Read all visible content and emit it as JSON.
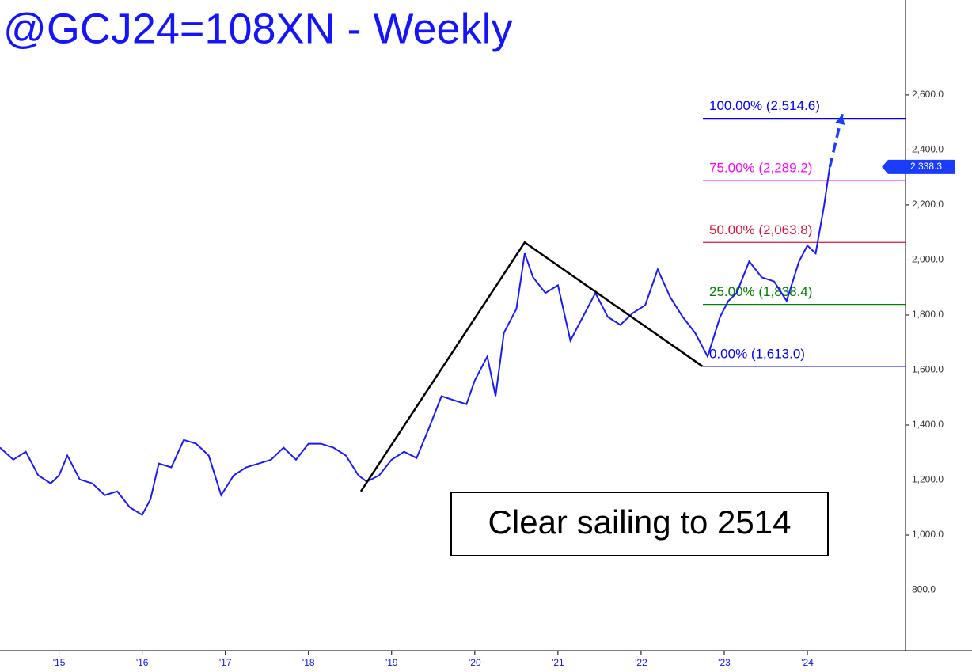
{
  "chart_data": {
    "type": "line",
    "title": "@GCJ24=108XN - Weekly",
    "color": "#1a1aff",
    "x": [
      2014.29,
      2014.45,
      2014.6,
      2014.75,
      2014.9,
      2015.0,
      2015.1,
      2015.25,
      2015.4,
      2015.55,
      2015.7,
      2015.85,
      2016.0,
      2016.1,
      2016.2,
      2016.35,
      2016.5,
      2016.65,
      2016.8,
      2016.95,
      2017.1,
      2017.25,
      2017.4,
      2017.55,
      2017.7,
      2017.85,
      2018.0,
      2018.15,
      2018.3,
      2018.45,
      2018.6,
      2018.7,
      2018.85,
      2019.0,
      2019.15,
      2019.3,
      2019.45,
      2019.6,
      2019.75,
      2019.9,
      2020.0,
      2020.15,
      2020.25,
      2020.35,
      2020.5,
      2020.6,
      2020.7,
      2020.85,
      2021.0,
      2021.15,
      2021.3,
      2021.45,
      2021.6,
      2021.75,
      2021.9,
      2022.05,
      2022.2,
      2022.35,
      2022.5,
      2022.65,
      2022.8,
      2022.95,
      2023.05,
      2023.15,
      2023.3,
      2023.45,
      2023.6,
      2023.75,
      2023.9,
      2024.0,
      2024.1,
      2024.2,
      2024.27
    ],
    "values": [
      1318,
      1274,
      1303,
      1217,
      1188,
      1217,
      1289,
      1202,
      1188,
      1145,
      1159,
      1101,
      1073,
      1130,
      1260,
      1246,
      1346,
      1332,
      1289,
      1145,
      1217,
      1246,
      1260,
      1274,
      1318,
      1274,
      1332,
      1332,
      1318,
      1289,
      1217,
      1194,
      1217,
      1274,
      1303,
      1280,
      1390,
      1505,
      1490,
      1476,
      1562,
      1649,
      1505,
      1735,
      1822,
      2024,
      1937,
      1880,
      1908,
      1707,
      1793,
      1880,
      1793,
      1764,
      1807,
      1836,
      1966,
      1865,
      1793,
      1735,
      1649,
      1793,
      1851,
      1880,
      1995,
      1937,
      1922,
      1851,
      1995,
      2052,
      2024,
      2197,
      2341
    ],
    "xlim": [
      2014.29,
      2025.18
    ],
    "ylim": [
      580,
      2945
    ],
    "xticks": [
      {
        "value": 2015,
        "label": "'15"
      },
      {
        "value": 2016,
        "label": "'16"
      },
      {
        "value": 2017,
        "label": "'17"
      },
      {
        "value": 2018,
        "label": "'18"
      },
      {
        "value": 2019,
        "label": "'19"
      },
      {
        "value": 2020,
        "label": "'20"
      },
      {
        "value": 2021,
        "label": "'21"
      },
      {
        "value": 2022,
        "label": "'22"
      },
      {
        "value": 2023,
        "label": "'23"
      },
      {
        "value": 2024,
        "label": "'24"
      }
    ],
    "yticks": [
      {
        "value": 800,
        "label": "800.0"
      },
      {
        "value": 1000,
        "label": "1,000.0"
      },
      {
        "value": 1200,
        "label": "1,200.0"
      },
      {
        "value": 1400,
        "label": "1,400.0"
      },
      {
        "value": 1600,
        "label": "1,600.0"
      },
      {
        "value": 1800,
        "label": "1,800.0"
      },
      {
        "value": 2000,
        "label": "2,000.0"
      },
      {
        "value": 2200,
        "label": "2,200.0"
      },
      {
        "value": 2400,
        "label": "2,400.0"
      },
      {
        "value": 2600,
        "label": "2,600.0"
      }
    ],
    "last_price": {
      "value": 2338.3,
      "label": "2,338.3"
    },
    "fib_levels": [
      {
        "label": "100.00% (2,514.6)",
        "value": 2514.6,
        "color": "#0000ff"
      },
      {
        "label": "75.00% (2,289.2)",
        "value": 2289.2,
        "color": "#ff00ff"
      },
      {
        "label": "50.00% (2,063.8)",
        "value": 2063.8,
        "color": "#dc143c"
      },
      {
        "label": "25.00% (1,838.4)",
        "value": 1838.4,
        "color": "#008000"
      },
      {
        "label": "0.00% (1,613.0)",
        "value": 1613.0,
        "color": "#0000ff"
      }
    ],
    "pattern_x": [
      2018.63,
      2020.6,
      2022.74
    ],
    "pattern_y": [
      1159,
      2063.8,
      1613.0
    ],
    "arrow_x": [
      2024.27,
      2024.42
    ],
    "arrow_y": [
      2338.3,
      2530
    ],
    "annotation": "Clear sailing to 2514"
  }
}
